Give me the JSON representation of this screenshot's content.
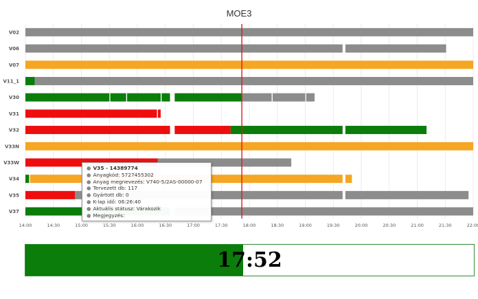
{
  "chart_data": {
    "type": "gantt",
    "title": "MOE3",
    "x_range": [
      "14:00",
      "22:00"
    ],
    "x_ticks": [
      "14:00",
      "14:30",
      "15:00",
      "15:30",
      "16:00",
      "16:30",
      "17:00",
      "17:30",
      "18:00",
      "18:30",
      "19:00",
      "19:30",
      "20:00",
      "20:30",
      "21:00",
      "21:30",
      "22:00"
    ],
    "current_time": "17:52",
    "gaps": [
      [
        "16:35",
        "16:40"
      ],
      [
        "19:40",
        "19:43"
      ]
    ],
    "colors": {
      "grey": "#8c8c8c",
      "orange": "#f5a623",
      "green": "#0a7d0a",
      "red": "#ee0e0e",
      "now_line": "#d61d1d",
      "grid": "#e6e6e6"
    },
    "rows": [
      {
        "label": "V02",
        "segments": [
          {
            "start": "14:00",
            "end": "22:00",
            "color": "grey"
          }
        ]
      },
      {
        "label": "V06",
        "segments": [
          {
            "start": "14:00",
            "end": "19:40",
            "color": "grey"
          },
          {
            "start": "19:43",
            "end": "21:31",
            "color": "grey"
          }
        ]
      },
      {
        "label": "V07",
        "segments": [
          {
            "start": "14:00",
            "end": "22:00",
            "color": "orange"
          }
        ]
      },
      {
        "label": "V11_1",
        "segments": [
          {
            "start": "14:00",
            "end": "14:10",
            "color": "green"
          },
          {
            "start": "14:10",
            "end": "22:00",
            "color": "grey"
          }
        ]
      },
      {
        "label": "V30",
        "segments": [
          {
            "start": "14:00",
            "end": "15:30",
            "color": "green"
          },
          {
            "start": "15:31",
            "end": "15:48",
            "color": "green"
          },
          {
            "start": "15:49",
            "end": "16:25",
            "color": "green"
          },
          {
            "start": "16:26",
            "end": "16:35",
            "color": "green"
          },
          {
            "start": "16:40",
            "end": "17:52",
            "color": "green"
          },
          {
            "start": "17:52",
            "end": "18:24",
            "color": "grey"
          },
          {
            "start": "18:25",
            "end": "19:00",
            "color": "grey"
          },
          {
            "start": "19:01",
            "end": "19:10",
            "color": "grey"
          }
        ]
      },
      {
        "label": "V31",
        "segments": [
          {
            "start": "14:00",
            "end": "16:21",
            "color": "red"
          },
          {
            "start": "16:22",
            "end": "16:25",
            "color": "red"
          }
        ]
      },
      {
        "label": "V32",
        "segments": [
          {
            "start": "14:00",
            "end": "16:35",
            "color": "red"
          },
          {
            "start": "16:40",
            "end": "17:40",
            "color": "red"
          },
          {
            "start": "17:40",
            "end": "19:40",
            "color": "green"
          },
          {
            "start": "19:43",
            "end": "21:10",
            "color": "green"
          }
        ]
      },
      {
        "label": "V33N",
        "segments": [
          {
            "start": "14:00",
            "end": "22:00",
            "color": "orange"
          }
        ]
      },
      {
        "label": "V33W",
        "segments": [
          {
            "start": "14:00",
            "end": "16:22",
            "color": "red"
          },
          {
            "start": "16:22",
            "end": "18:45",
            "color": "grey"
          }
        ]
      },
      {
        "label": "V34",
        "segments": [
          {
            "start": "14:00",
            "end": "14:04",
            "color": "green"
          },
          {
            "start": "14:05",
            "end": "19:40",
            "color": "orange"
          },
          {
            "start": "19:43",
            "end": "19:50",
            "color": "orange"
          }
        ]
      },
      {
        "label": "V35",
        "segments": [
          {
            "start": "14:00",
            "end": "14:53",
            "color": "red"
          },
          {
            "start": "14:53",
            "end": "19:40",
            "color": "grey"
          },
          {
            "start": "19:43",
            "end": "21:55",
            "color": "grey"
          }
        ]
      },
      {
        "label": "V37",
        "segments": [
          {
            "start": "14:00",
            "end": "16:35",
            "color": "green"
          },
          {
            "start": "16:40",
            "end": "22:00",
            "color": "grey"
          }
        ]
      }
    ]
  },
  "tooltip": {
    "title": "V35 - 14389774",
    "lines": [
      "Anyagkód: 5727455302",
      "Anyag megnevezés: V740-5/2AS-00000-07",
      "Tervezett db: 117",
      "Gyártott db: 0",
      "K-lap idő: 06:26:40",
      "Aktuális státusz: Várakozik",
      "Megjegyzés:"
    ]
  },
  "clock": {
    "time": "17:52",
    "progress": 0.486,
    "fill_color": "#0a7d0a"
  }
}
